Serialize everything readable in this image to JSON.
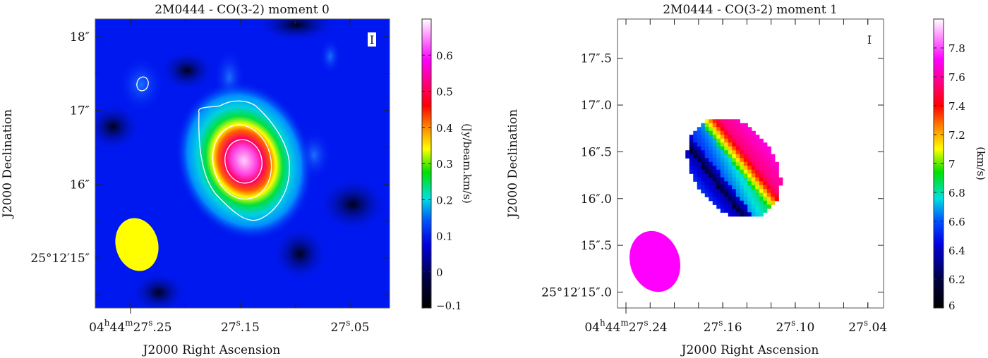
{
  "chart_data": [
    {
      "type": "heatmap",
      "title": "2M0444 - CO(3-2) moment 0",
      "xlabel": "J2000 Right Ascension",
      "ylabel": "J2000 Declination",
      "stokes_label": "I",
      "x_ticks": [
        {
          "value": 27.25,
          "h": "04",
          "m": "44",
          "s": "27",
          "frac": ".25"
        },
        {
          "value": 27.15,
          "s": "27",
          "frac": ".15"
        },
        {
          "value": 27.05,
          "s": "27",
          "frac": ".05"
        }
      ],
      "xlim": [
        27.282,
        27.014
      ],
      "y_ticks": [
        {
          "value": 18,
          "label": "18″"
        },
        {
          "value": 17,
          "label": "17″"
        },
        {
          "value": 16,
          "label": "16″"
        },
        {
          "value": 15,
          "label": "25°12′15″"
        }
      ],
      "ylim": [
        14.32,
        18.24
      ],
      "colorbar": {
        "label": "(Jy/beam.km/s)",
        "ticks": [
          -0.1,
          0,
          0.1,
          0.2,
          0.3,
          0.4,
          0.5,
          0.6
        ],
        "tick_labels": [
          "−0.1",
          "0",
          "0.1",
          "0.2",
          "0.3",
          "0.4",
          "0.5",
          "0.6"
        ],
        "range": [
          -0.1,
          0.7
        ]
      },
      "peak": {
        "ra_s": 27.152,
        "dec": 16.3,
        "value": 0.7
      },
      "contours": 3,
      "beam_color": "#ffff00"
    },
    {
      "type": "heatmap",
      "title": "2M0444 - CO(3-2) moment 1",
      "xlabel": "J2000 Right Ascension",
      "ylabel": "J2000 Declination",
      "stokes_label": "I",
      "x_ticks": [
        {
          "value": 27.24,
          "h": "04",
          "m": "44",
          "s": "27",
          "frac": ".24"
        },
        {
          "value": 27.16,
          "s": "27",
          "frac": ".16"
        },
        {
          "value": 27.1,
          "s": "27",
          "frac": ".10"
        },
        {
          "value": 27.04,
          "s": "27",
          "frac": ".04"
        }
      ],
      "xlim": [
        27.247,
        27.027
      ],
      "y_ticks": [
        {
          "value": 17.5,
          "label": "17″.5"
        },
        {
          "value": 17.0,
          "label": "17″.0"
        },
        {
          "value": 16.5,
          "label": "16″.5"
        },
        {
          "value": 16.0,
          "label": "16″.0"
        },
        {
          "value": 15.5,
          "label": "15″.5"
        },
        {
          "value": 15.0,
          "label": "25°12′15″.0"
        }
      ],
      "ylim": [
        14.83,
        17.92
      ],
      "colorbar": {
        "label": "(km/s)",
        "ticks": [
          6,
          6.2,
          6.4,
          6.6,
          6.8,
          7,
          7.2,
          7.4,
          7.6,
          7.8
        ],
        "tick_labels": [
          "6",
          "6.2",
          "6.4",
          "6.6",
          "6.8",
          "7",
          "7.2",
          "7.4",
          "7.6",
          "7.8"
        ],
        "range": [
          6,
          8
        ]
      },
      "beam_color": "#ff00ff"
    }
  ]
}
